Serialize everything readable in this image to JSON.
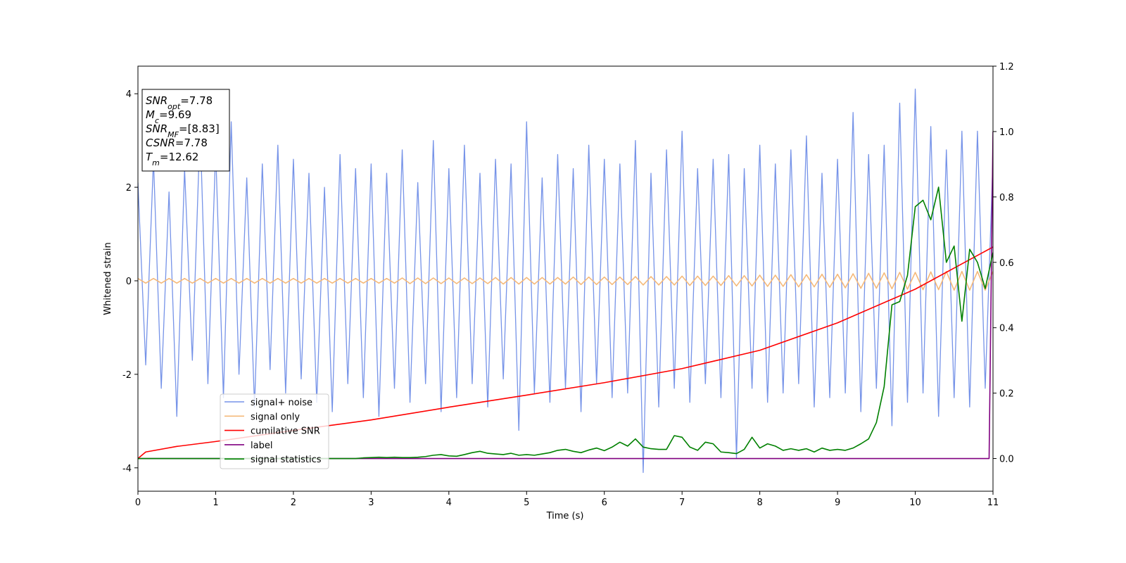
{
  "chart_data": {
    "type": "line",
    "xlabel": "Time (s)",
    "ylabel": "Whitened strain",
    "xlim": [
      0,
      11
    ],
    "ylim": [
      -4.5,
      4.59
    ],
    "y2lim": [
      -0.1,
      1.2
    ],
    "xticks": [
      0,
      1,
      2,
      3,
      4,
      5,
      6,
      7,
      8,
      9,
      10,
      11
    ],
    "yticks": [
      -4,
      -2,
      0,
      2,
      4
    ],
    "y2ticks": [
      {
        "value": 0,
        "label": "0.0"
      },
      {
        "value": 0.2,
        "label": "0.2"
      },
      {
        "value": 0.4,
        "label": "0.4"
      },
      {
        "value": 0.6,
        "label": "0.6"
      },
      {
        "value": 0.8,
        "label": "0.8"
      },
      {
        "value": 1,
        "label": "1.0"
      },
      {
        "value": 1.2,
        "label": "1.2"
      }
    ],
    "legend_loc": "lower left",
    "annotations": [
      {
        "base": "SNR",
        "sub": "opt",
        "text": "=7.78"
      },
      {
        "base": "M",
        "sub": "c",
        "text": "=9.69"
      },
      {
        "base": "SNR",
        "sub": "MF",
        "text": "=[8.83]"
      },
      {
        "base": "CSNR",
        "text": "=7.78"
      },
      {
        "base": "T",
        "sub": "m",
        "text": "=12.62"
      }
    ],
    "x": [
      0,
      0.1,
      0.2,
      0.3,
      0.4,
      0.5,
      0.6,
      0.7,
      0.8,
      0.9,
      1,
      1.1,
      1.2,
      1.3,
      1.4,
      1.5,
      1.6,
      1.7,
      1.8,
      1.9,
      2,
      2.1,
      2.2,
      2.3,
      2.4,
      2.5,
      2.6,
      2.7,
      2.8,
      2.9,
      3,
      3.1,
      3.2,
      3.3,
      3.4,
      3.5,
      3.6,
      3.7,
      3.8,
      3.9,
      4,
      4.1,
      4.2,
      4.3,
      4.4,
      4.5,
      4.6,
      4.7,
      4.8,
      4.9,
      5,
      5.1,
      5.2,
      5.3,
      5.4,
      5.5,
      5.6,
      5.7,
      5.8,
      5.9,
      6,
      6.1,
      6.2,
      6.3,
      6.4,
      6.5,
      6.6,
      6.7,
      6.8,
      6.9,
      7,
      7.1,
      7.2,
      7.3,
      7.4,
      7.5,
      7.6,
      7.7,
      7.8,
      7.9,
      8,
      8.1,
      8.2,
      8.3,
      8.4,
      8.5,
      8.6,
      8.7,
      8.8,
      8.9,
      9,
      9.1,
      9.2,
      9.3,
      9.4,
      9.5,
      9.6,
      9.7,
      9.8,
      9.9,
      10,
      10.1,
      10.2,
      10.3,
      10.4,
      10.5,
      10.6,
      10.7,
      10.8,
      10.9,
      11
    ],
    "series": [
      {
        "name": "signal+ noise",
        "color": "#7693e8",
        "axis": "y",
        "values": [
          2.1,
          -1.8,
          2.6,
          -2.3,
          1.9,
          -2.9,
          2.4,
          -1.7,
          3.3,
          -2.2,
          2.8,
          -2.5,
          3.4,
          -2.0,
          2.2,
          -2.7,
          2.5,
          -1.9,
          2.9,
          -2.4,
          2.6,
          -2.1,
          2.3,
          -2.6,
          2.0,
          -2.8,
          2.7,
          -2.2,
          2.4,
          -2.5,
          2.5,
          -2.9,
          2.3,
          -2.3,
          2.8,
          -2.6,
          2.1,
          -2.2,
          3.0,
          -2.8,
          2.4,
          -2.5,
          2.9,
          -2.2,
          2.3,
          -2.7,
          2.6,
          -2.1,
          2.5,
          -3.2,
          3.4,
          -2.4,
          2.2,
          -2.6,
          2.7,
          -2.3,
          2.4,
          -2.8,
          2.9,
          -2.2,
          2.6,
          -2.5,
          2.5,
          -2.4,
          3.0,
          -4.1,
          2.3,
          -2.7,
          2.8,
          -2.3,
          3.2,
          -2.6,
          2.4,
          -2.2,
          2.6,
          -2.5,
          2.7,
          -3.8,
          2.4,
          -2.3,
          2.9,
          -2.6,
          2.5,
          -2.4,
          2.8,
          -2.2,
          3.1,
          -2.7,
          2.3,
          -2.5,
          2.6,
          -2.4,
          3.6,
          -2.8,
          2.7,
          -2.3,
          2.9,
          -3.1,
          3.8,
          -2.6,
          4.1,
          -2.4,
          3.3,
          -2.9,
          2.8,
          -2.5,
          3.2,
          -2.7,
          3.2,
          -2.3,
          2.6
        ]
      },
      {
        "name": "signal only",
        "color": "#f5b97a",
        "axis": "y",
        "values": [
          0.05,
          -0.05,
          0.05,
          -0.05,
          0.05,
          -0.05,
          0.05,
          -0.05,
          0.05,
          -0.05,
          0.05,
          -0.05,
          0.05,
          -0.05,
          0.05,
          -0.05,
          0.05,
          -0.05,
          0.05,
          -0.05,
          0.05,
          -0.05,
          0.05,
          -0.05,
          0.05,
          -0.05,
          0.05,
          -0.05,
          0.05,
          -0.05,
          0.05,
          -0.05,
          0.05,
          -0.05,
          0.06,
          -0.06,
          0.06,
          -0.06,
          0.06,
          -0.06,
          0.06,
          -0.06,
          0.06,
          -0.06,
          0.06,
          -0.06,
          0.07,
          -0.07,
          0.07,
          -0.07,
          0.07,
          -0.07,
          0.07,
          -0.07,
          0.07,
          -0.07,
          0.08,
          -0.08,
          0.08,
          -0.08,
          0.08,
          -0.08,
          0.08,
          -0.08,
          0.09,
          -0.09,
          0.09,
          -0.09,
          0.09,
          -0.09,
          0.1,
          -0.1,
          0.1,
          -0.1,
          0.1,
          -0.1,
          0.11,
          -0.11,
          0.11,
          -0.11,
          0.12,
          -0.12,
          0.12,
          -0.12,
          0.13,
          -0.13,
          0.13,
          -0.13,
          0.14,
          -0.14,
          0.14,
          -0.15,
          0.15,
          -0.16,
          0.16,
          -0.16,
          0.17,
          -0.17,
          0.18,
          -0.18,
          0.18,
          -0.19,
          0.19,
          -0.19,
          0.2,
          -0.2,
          0.2,
          -0.2,
          0.2,
          -0.2,
          0.2
        ]
      },
      {
        "name": "cumilative SNR",
        "color": "#ff0000",
        "axis": "y2",
        "x": [
          0,
          0.1,
          0.5,
          1,
          2,
          3,
          4,
          5,
          6,
          7,
          8,
          9,
          10,
          11
        ],
        "values": [
          0,
          0.02,
          0.037,
          0.052,
          0.086,
          0.118,
          0.157,
          0.194,
          0.232,
          0.275,
          0.331,
          0.415,
          0.518,
          0.647
        ]
      },
      {
        "name": "label",
        "color": "#800080",
        "axis": "y2",
        "x": [
          0,
          10.95,
          11
        ],
        "values": [
          0,
          0,
          1
        ]
      },
      {
        "name": "signal statistics",
        "color": "#008000",
        "axis": "y2",
        "values": [
          0,
          0,
          0,
          0,
          0,
          0,
          0,
          0,
          0,
          0,
          0,
          0,
          0,
          0,
          0,
          0,
          0,
          0,
          0,
          0,
          0,
          0,
          0,
          0,
          0,
          0,
          0,
          0,
          0,
          0.002,
          0.003,
          0.004,
          0.003,
          0.004,
          0.003,
          0.003,
          0.004,
          0.006,
          0.01,
          0.012,
          0.008,
          0.007,
          0.012,
          0.018,
          0.022,
          0.016,
          0.014,
          0.012,
          0.016,
          0.01,
          0.012,
          0.01,
          0.014,
          0.018,
          0.025,
          0.028,
          0.022,
          0.018,
          0.026,
          0.032,
          0.024,
          0.035,
          0.05,
          0.038,
          0.06,
          0.035,
          0.03,
          0.028,
          0.028,
          0.07,
          0.065,
          0.035,
          0.025,
          0.05,
          0.045,
          0.02,
          0.018,
          0.015,
          0.028,
          0.065,
          0.032,
          0.045,
          0.038,
          0.025,
          0.03,
          0.025,
          0.03,
          0.02,
          0.032,
          0.025,
          0.028,
          0.025,
          0.032,
          0.045,
          0.06,
          0.11,
          0.22,
          0.47,
          0.48,
          0.56,
          0.77,
          0.79,
          0.73,
          0.83,
          0.6,
          0.65,
          0.42,
          0.64,
          0.6,
          0.52,
          0.63
        ]
      }
    ]
  }
}
